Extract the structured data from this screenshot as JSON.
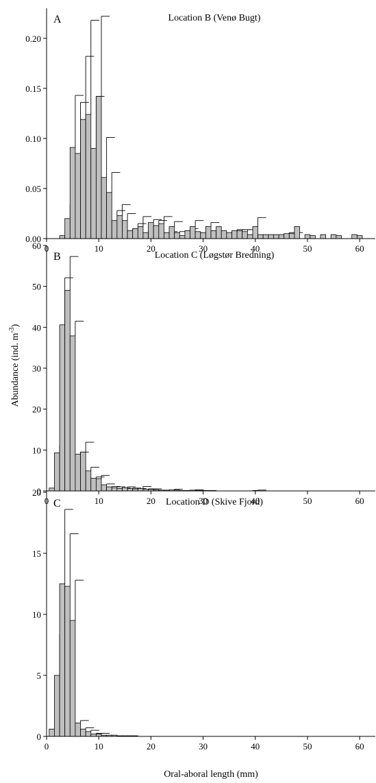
{
  "figure": {
    "ylabel": "Abundance (ind. m",
    "ylabel_sup": "-3",
    "ylabel_end": ")",
    "xlabel": "Oral-aboral length (mm)"
  },
  "chart_data": [
    {
      "type": "bar",
      "panel": "A",
      "title": "Location B (Venø Bugt)",
      "xlim": [
        0,
        63
      ],
      "ylim": [
        0,
        0.23
      ],
      "xticks": [
        0,
        10,
        20,
        30,
        40,
        50,
        60
      ],
      "yticks": [
        0.0,
        0.05,
        0.1,
        0.15,
        0.2
      ],
      "ytick_labels": [
        "0.00",
        "0.05",
        "0.10",
        "0.15",
        "0.20"
      ],
      "x": [
        3,
        4,
        5,
        6,
        7,
        8,
        9,
        10,
        11,
        12,
        13,
        14,
        15,
        16,
        17,
        18,
        19,
        20,
        21,
        22,
        23,
        24,
        25,
        26,
        27,
        28,
        29,
        30,
        31,
        32,
        33,
        34,
        35,
        36,
        37,
        38,
        39,
        40,
        41,
        42,
        43,
        44,
        45,
        46,
        47,
        48,
        49,
        50,
        51,
        52,
        53,
        54,
        55,
        56,
        57,
        58,
        59,
        60
      ],
      "values": [
        0.003,
        0.02,
        0.091,
        0.085,
        0.119,
        0.124,
        0.09,
        0.142,
        0.061,
        0.046,
        0.018,
        0.023,
        0.018,
        0.008,
        0.01,
        0.012,
        0.006,
        0.016,
        0.013,
        0.015,
        0.006,
        0.012,
        0.006,
        0.003,
        0.008,
        0.012,
        0.007,
        0.006,
        0.012,
        0.008,
        0.012,
        0.008,
        0.006,
        0.008,
        0.008,
        0.007,
        0.004,
        0.012,
        0.004,
        0.004,
        0.004,
        0.004,
        0.004,
        0.005,
        0.005,
        0.012,
        0,
        0.004,
        0.003,
        0,
        0.004,
        0,
        0.004,
        0.003,
        0,
        0,
        0.004,
        0.003
      ],
      "errors": [
        0,
        0.014,
        0.052,
        0.051,
        0.063,
        0.094,
        0.052,
        0.08,
        0.04,
        0.02,
        0.01,
        0.011,
        0.007,
        0.002,
        0.005,
        0.01,
        0.002,
        0.003,
        0.005,
        0.007,
        0.001,
        0.005,
        0.001,
        0,
        0.002,
        0.006,
        0,
        0.001,
        0.004,
        0,
        0,
        0,
        0.001,
        0.001,
        0.001,
        0.002,
        0,
        0.009,
        0,
        0,
        0,
        0,
        0,
        0.001,
        0.001,
        0,
        0,
        0,
        0,
        0,
        0,
        0,
        0,
        0,
        0,
        0,
        0,
        0
      ]
    },
    {
      "type": "bar",
      "panel": "B",
      "title": "Location C (Løgstør Bredning)",
      "xlim": [
        0,
        63
      ],
      "ylim": [
        0,
        60
      ],
      "xticks": [
        0,
        10,
        20,
        30,
        40,
        50,
        60
      ],
      "yticks": [
        0,
        10,
        20,
        30,
        40,
        50,
        60
      ],
      "ytick_labels": [
        "0",
        "10",
        "20",
        "30",
        "40",
        "50",
        "60"
      ],
      "x": [
        1,
        2,
        3,
        4,
        5,
        6,
        7,
        8,
        9,
        10,
        11,
        12,
        13,
        14,
        15,
        16,
        17,
        18,
        19,
        20,
        21,
        22,
        23,
        24,
        25,
        26,
        27,
        28,
        29,
        30,
        31,
        32,
        33,
        34,
        35,
        36,
        37,
        38,
        39,
        40
      ],
      "values": [
        0.7,
        9.3,
        40.6,
        49.0,
        37.9,
        9.0,
        9.5,
        4.9,
        3.1,
        3.0,
        1.5,
        1.0,
        0.8,
        0.6,
        0.8,
        0.6,
        0.5,
        0.6,
        0.4,
        0.4,
        0.3,
        0.2,
        0.2,
        0.3,
        0.2,
        0.1,
        0.1,
        0.2,
        0.1,
        0.1,
        0.1,
        0.1,
        0,
        0,
        0,
        0,
        0,
        0,
        0,
        0.1
      ],
      "errors": [
        0,
        1.8,
        11.5,
        8.3,
        3.6,
        0.5,
        2.4,
        0.9,
        0.3,
        0.8,
        0.2,
        0.1,
        0.2,
        0.1,
        0.2,
        0.1,
        0.1,
        0.5,
        0.1,
        0.1,
        0,
        0,
        0,
        0.1,
        0,
        0,
        0,
        0.1,
        0,
        0,
        0,
        0,
        0,
        0,
        0,
        0,
        0,
        0,
        0,
        0.1
      ]
    },
    {
      "type": "bar",
      "panel": "C",
      "title": "Location D (Skive Fjord)",
      "xlim": [
        0,
        63
      ],
      "ylim": [
        0,
        20
      ],
      "xticks": [
        0,
        10,
        20,
        30,
        40,
        50,
        60
      ],
      "yticks": [
        0,
        5,
        10,
        15,
        20
      ],
      "ytick_labels": [
        "0",
        "5",
        "10",
        "15",
        "20"
      ],
      "x": [
        1,
        2,
        3,
        4,
        5,
        6,
        7,
        8,
        9,
        10,
        11,
        12,
        13,
        14,
        15,
        16,
        17
      ],
      "values": [
        0.6,
        5.0,
        12.5,
        12.3,
        9.5,
        1.1,
        0.6,
        0.4,
        0.2,
        0.2,
        0.1,
        0.1,
        0.1,
        0.05,
        0.05,
        0.05,
        0.05
      ],
      "errors": [
        0,
        3.4,
        6.1,
        4.3,
        3.3,
        0.2,
        0.1,
        0.1,
        0.05,
        0.05,
        0,
        0,
        0,
        0,
        0,
        0,
        0
      ]
    }
  ]
}
